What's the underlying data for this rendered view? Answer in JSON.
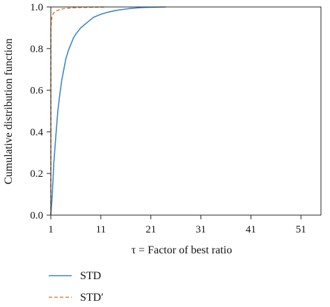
{
  "chart_data": {
    "type": "line",
    "title": "",
    "xlabel": "τ = Factor of best ratio",
    "ylabel": "Cumulative distribution function",
    "xlim": [
      1,
      55
    ],
    "ylim": [
      0,
      1.0
    ],
    "x_ticks": [
      1,
      11,
      21,
      31,
      41,
      51
    ],
    "y_ticks": [
      0.0,
      0.2,
      0.4,
      0.6,
      0.8,
      1.0
    ],
    "x_tick_labels": [
      "1",
      "11",
      "21",
      "31",
      "41",
      "51"
    ],
    "y_tick_labels": [
      "0.0",
      "0.2",
      "0.4",
      "0.6",
      "0.8",
      "1.0"
    ],
    "grid": false,
    "legend_position": "below plot, left",
    "series": [
      {
        "name": "STD",
        "color": "#3b86c6",
        "style": "solid",
        "x": [
          1.0,
          1.3,
          1.6,
          2.0,
          2.4,
          2.8,
          3.2,
          3.6,
          4.0,
          4.5,
          5.0,
          5.5,
          6.0,
          6.5,
          7.0,
          7.5,
          8.0,
          8.5,
          9.0,
          9.5,
          10.0,
          11.0,
          12.0,
          13.0,
          14.0,
          15.0,
          16.0,
          17.0,
          18.0,
          19.0,
          20.0,
          22.0,
          24.0
        ],
        "y": [
          0.0,
          0.1,
          0.25,
          0.38,
          0.5,
          0.58,
          0.65,
          0.7,
          0.75,
          0.79,
          0.82,
          0.85,
          0.87,
          0.885,
          0.9,
          0.91,
          0.92,
          0.93,
          0.94,
          0.95,
          0.955,
          0.965,
          0.972,
          0.978,
          0.983,
          0.987,
          0.99,
          0.993,
          0.995,
          0.997,
          0.998,
          0.999,
          1.0
        ]
      },
      {
        "name": "STD′",
        "color": "#e0833a",
        "style": "dashed",
        "x": [
          1.0,
          1.0,
          1.2,
          1.5,
          2.0,
          2.5,
          3.0,
          4.0,
          5.0,
          6.0,
          8.0,
          10.0,
          12.0
        ],
        "y": [
          0.0,
          0.9,
          0.95,
          0.97,
          0.98,
          0.985,
          0.99,
          0.993,
          0.995,
          0.997,
          0.998,
          0.999,
          1.0
        ]
      }
    ]
  }
}
